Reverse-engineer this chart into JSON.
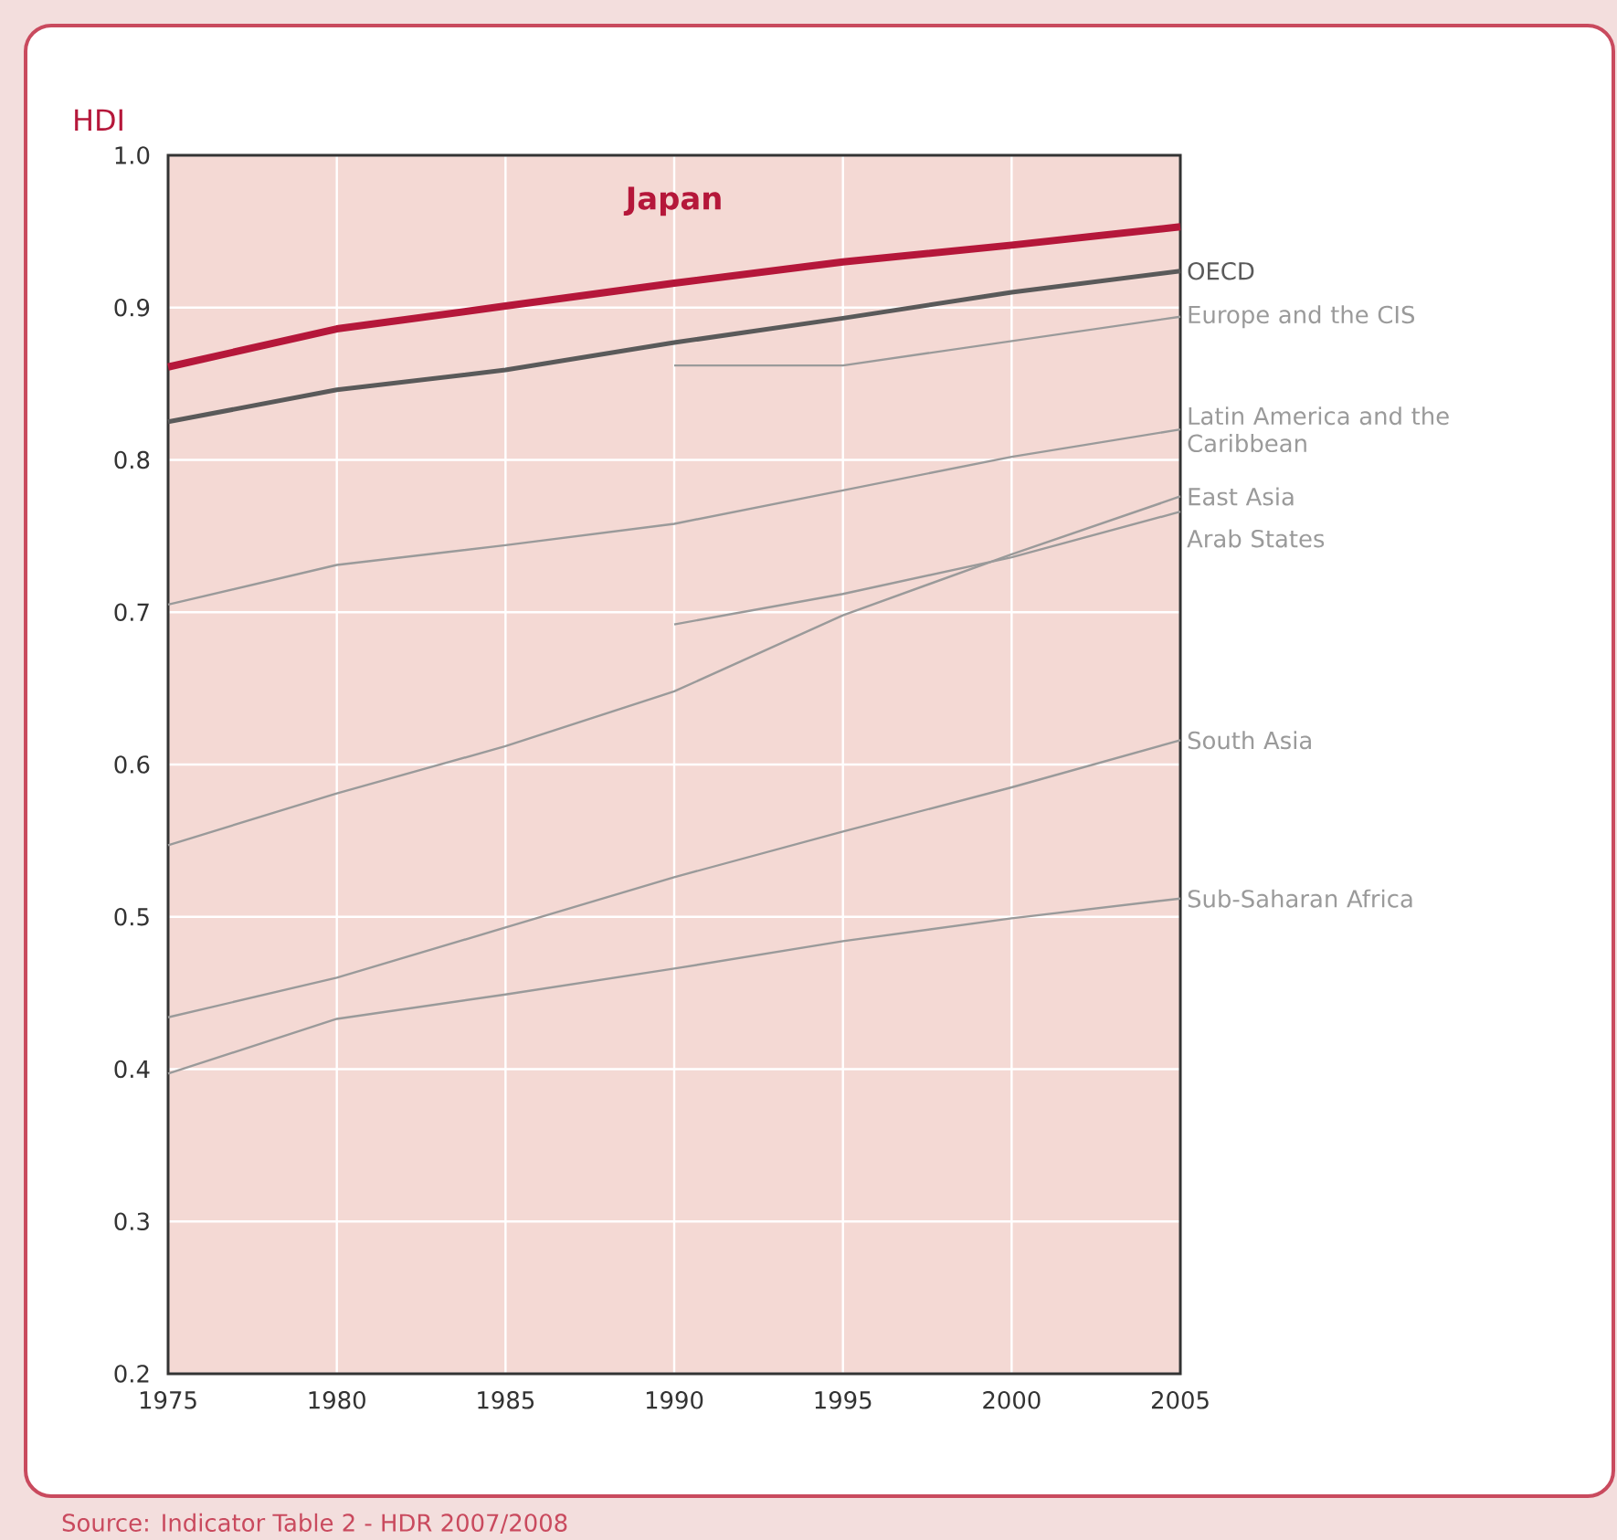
{
  "chart_data": {
    "type": "line",
    "ylabel": "HDI",
    "x": [
      1975,
      1980,
      1985,
      1990,
      1995,
      2000,
      2005
    ],
    "series": [
      {
        "name": "Japan",
        "color": "#b5173a",
        "values": [
          0.861,
          0.886,
          0.901,
          0.916,
          0.93,
          0.941,
          0.953
        ]
      },
      {
        "name": "OECD",
        "color": "#5a5a5a",
        "values": [
          0.825,
          0.846,
          0.859,
          0.877,
          0.893,
          0.91,
          0.924
        ]
      },
      {
        "name": "Europe and the CIS",
        "color": "#9a9a9a",
        "values": [
          null,
          null,
          null,
          0.862,
          0.862,
          null,
          0.894
        ]
      },
      {
        "name": "Latin America and the Caribbean",
        "color": "#9a9a9a",
        "values": [
          0.705,
          0.731,
          0.744,
          0.758,
          0.78,
          0.802,
          0.82
        ]
      },
      {
        "name": "East Asia",
        "color": "#9a9a9a",
        "values": [
          0.547,
          0.581,
          0.612,
          0.648,
          0.698,
          0.738,
          0.776
        ]
      },
      {
        "name": "Arab States",
        "color": "#9a9a9a",
        "values": [
          null,
          null,
          null,
          0.692,
          0.712,
          0.736,
          0.766
        ]
      },
      {
        "name": "South Asia",
        "color": "#9a9a9a",
        "values": [
          0.434,
          0.46,
          0.493,
          0.526,
          0.556,
          0.585,
          0.616
        ]
      },
      {
        "name": "Sub-Saharan Africa",
        "color": "#9a9a9a",
        "values": [
          0.397,
          0.433,
          0.449,
          0.466,
          0.484,
          0.499,
          0.512
        ]
      }
    ],
    "xlim": [
      1975,
      2005
    ],
    "ylim": [
      0.2,
      1.0
    ],
    "xticks": [
      1975,
      1980,
      1985,
      1990,
      1995,
      2000,
      2005
    ],
    "yticks": [
      0.2,
      0.3,
      0.4,
      0.5,
      0.6,
      0.7,
      0.8,
      0.9,
      {
        "value": 1.0,
        "label": "1.0"
      }
    ],
    "grid": true,
    "legend": false,
    "marker": "none",
    "line_style": "solid",
    "annotations": [
      "Source: Indicator Table 2 - HDR 2007/2008"
    ]
  }
}
